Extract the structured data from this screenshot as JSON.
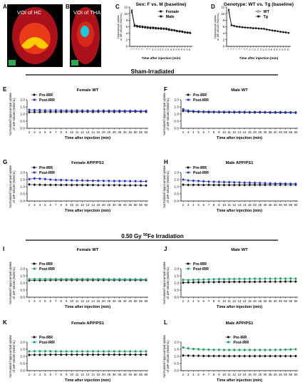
{
  "figure": {
    "sections": {
      "sham": "Sham-Irradiated",
      "fe_prefix": "0.50 Gy ",
      "fe_sup": "56",
      "fe_suffix": "Fe Irradiation"
    },
    "images": [
      {
        "letter": "A",
        "label": "VOI of HC"
      },
      {
        "letter": "B",
        "label": "VOI of THA"
      }
    ],
    "colors": {
      "black": "#111111",
      "blue": "#1f2fbf",
      "green": "#1a9a5e",
      "hc_yellow": "#ffcc00",
      "tha_cyan": "#1ec8d8",
      "brain_red": "#c8141e",
      "scan_green": "#2fa84f"
    }
  },
  "chart_data": [
    {
      "panel": "C",
      "type": "line",
      "title": "Sex: F vs. M (baseline)",
      "xlabel": "Time after injection (min)",
      "ylabel": "Hippocampal uptake of 18F-GE180 (%ID/mL)",
      "ylim": [
        0,
        12
      ],
      "yticks": [
        "12",
        "10",
        "8",
        "6",
        "4",
        "2",
        "0"
      ],
      "x": [
        2,
        3,
        4,
        5,
        6,
        7,
        8,
        9,
        10,
        11,
        12,
        13,
        14,
        15,
        20,
        25,
        30,
        35,
        40,
        45,
        50,
        55,
        60
      ],
      "legend": "top-right",
      "series": [
        {
          "name": "Female",
          "color_key": "black",
          "marker": "circle-filled",
          "values": [
            10.4,
            6.2,
            6.0,
            5.9,
            5.8,
            5.7,
            5.6,
            5.5,
            5.5,
            5.4,
            5.4,
            5.3,
            5.3,
            5.2,
            5.0,
            4.9,
            4.8,
            4.6,
            4.5,
            4.4,
            4.2,
            4.1,
            4.0
          ]
        },
        {
          "name": "Male",
          "color_key": "black",
          "marker": "square-filled",
          "values": [
            11.0,
            6.6,
            6.3,
            6.2,
            6.1,
            6.0,
            5.9,
            5.8,
            5.8,
            5.7,
            5.6,
            5.6,
            5.5,
            5.5,
            5.3,
            5.1,
            5.0,
            4.8,
            4.7,
            4.6,
            4.4,
            4.3,
            4.2
          ]
        }
      ]
    },
    {
      "panel": "D",
      "type": "line",
      "title": "Genotype: WT vs. Tg (baseline)",
      "xlabel": "Time after injection (min)",
      "ylabel": "Hippocampal uptake of 18F-GE180 (%ID/mL)",
      "ylim": [
        0,
        12
      ],
      "yticks": [
        "12",
        "10",
        "8",
        "6",
        "4",
        "2",
        "0"
      ],
      "x": [
        2,
        3,
        4,
        5,
        6,
        7,
        8,
        9,
        10,
        11,
        12,
        13,
        14,
        15,
        20,
        25,
        30,
        35,
        40,
        45,
        50,
        55,
        60
      ],
      "legend": "top-right",
      "series": [
        {
          "name": "WT",
          "color_key": "black",
          "marker": "circle-open",
          "values": [
            10.6,
            6.4,
            6.2,
            6.0,
            5.9,
            5.8,
            5.7,
            5.7,
            5.6,
            5.5,
            5.5,
            5.4,
            5.4,
            5.3,
            5.1,
            5.0,
            4.8,
            4.7,
            4.6,
            4.4,
            4.3,
            4.2,
            4.1
          ]
        },
        {
          "name": "Tg",
          "color_key": "black",
          "marker": "square-filled",
          "values": [
            11.2,
            6.5,
            6.3,
            6.1,
            6.0,
            5.9,
            5.8,
            5.7,
            5.7,
            5.6,
            5.6,
            5.5,
            5.4,
            5.4,
            5.2,
            5.0,
            4.9,
            4.8,
            4.6,
            4.5,
            4.4,
            4.3,
            4.1
          ]
        }
      ]
    },
    {
      "panel": "E",
      "type": "line",
      "title": "Female WT",
      "xlabel": "Time after injection (min)",
      "ylabel": "Normalized hippocampal uptake of 18F-GE180 (%ID/mL)",
      "ylim": [
        0,
        2.0
      ],
      "yticks": [
        "2.0",
        "1.5",
        "1.0",
        "0.5",
        "0.0"
      ],
      "x": [
        2,
        3,
        4,
        5,
        6,
        7,
        8,
        9,
        10,
        11,
        12,
        13,
        14,
        15,
        20,
        25,
        30,
        35,
        40,
        45,
        50,
        55,
        60
      ],
      "legend": "top-left",
      "series": [
        {
          "name": "Pre-IRR",
          "color_key": "black",
          "marker": "circle-filled",
          "values": [
            1.13,
            1.14,
            1.14,
            1.15,
            1.15,
            1.15,
            1.15,
            1.16,
            1.15,
            1.15,
            1.16,
            1.16,
            1.15,
            1.16,
            1.16,
            1.16,
            1.15,
            1.16,
            1.16,
            1.16,
            1.17,
            1.16,
            1.16
          ]
        },
        {
          "name": "Post-IRR",
          "color_key": "blue",
          "marker": "square-filled",
          "values": [
            1.29,
            1.28,
            1.28,
            1.26,
            1.26,
            1.26,
            1.25,
            1.25,
            1.24,
            1.25,
            1.24,
            1.24,
            1.23,
            1.24,
            1.24,
            1.23,
            1.23,
            1.23,
            1.22,
            1.22,
            1.22,
            1.21,
            1.22
          ]
        }
      ]
    },
    {
      "panel": "F",
      "type": "line",
      "title": "Male WT",
      "xlabel": "Time after injection (min)",
      "ylabel": "Normalized hippocampal uptake of 18F-GE180 (%ID/mL)",
      "ylim": [
        0,
        2.0
      ],
      "yticks": [
        "2.0",
        "1.5",
        "1.0",
        "0.5",
        "0.0"
      ],
      "x": [
        2,
        3,
        4,
        5,
        6,
        7,
        8,
        9,
        10,
        11,
        12,
        13,
        14,
        15,
        20,
        25,
        30,
        35,
        40,
        45,
        50,
        55,
        60
      ],
      "legend": "top-left",
      "series": [
        {
          "name": "Pre-IRR",
          "color_key": "black",
          "marker": "circle-filled",
          "values": [
            1.22,
            1.18,
            1.16,
            1.15,
            1.14,
            1.13,
            1.13,
            1.13,
            1.12,
            1.12,
            1.12,
            1.12,
            1.11,
            1.11,
            1.11,
            1.11,
            1.11,
            1.1,
            1.1,
            1.1,
            1.1,
            1.1,
            1.09
          ]
        },
        {
          "name": "Post-IRR",
          "color_key": "blue",
          "marker": "square-filled",
          "values": [
            1.33,
            1.24,
            1.2,
            1.18,
            1.17,
            1.17,
            1.16,
            1.16,
            1.16,
            1.15,
            1.15,
            1.15,
            1.15,
            1.14,
            1.14,
            1.14,
            1.14,
            1.13,
            1.13,
            1.13,
            1.13,
            1.12,
            1.12
          ]
        }
      ]
    },
    {
      "panel": "G",
      "type": "line",
      "title": "Female APP/PS1",
      "xlabel": "Time after injection (min)",
      "ylabel": "Normalized hippocampal uptake of 18F-GE180 (%ID/mL)",
      "ylim": [
        0,
        2.0
      ],
      "yticks": [
        "2.0",
        "1.5",
        "1.0",
        "0.5",
        "0.0"
      ],
      "x": [
        2,
        3,
        4,
        5,
        6,
        7,
        8,
        9,
        10,
        11,
        12,
        13,
        14,
        15,
        20,
        25,
        30,
        35,
        40,
        45,
        50,
        55,
        60
      ],
      "legend": "top-left",
      "series": [
        {
          "name": "Pre-IRR",
          "color_key": "black",
          "marker": "circle-filled",
          "values": [
            1.16,
            1.14,
            1.14,
            1.13,
            1.13,
            1.13,
            1.13,
            1.13,
            1.12,
            1.12,
            1.12,
            1.12,
            1.12,
            1.11,
            1.11,
            1.11,
            1.11,
            1.11,
            1.1,
            1.1,
            1.1,
            1.1,
            1.09
          ]
        },
        {
          "name": "Post-IRR",
          "color_key": "blue",
          "marker": "square-filled",
          "values": [
            1.53,
            1.58,
            1.56,
            1.54,
            1.5,
            1.48,
            1.47,
            1.46,
            1.45,
            1.44,
            1.44,
            1.43,
            1.42,
            1.42,
            1.41,
            1.41,
            1.4,
            1.4,
            1.4,
            1.39,
            1.39,
            1.38,
            1.38
          ]
        }
      ]
    },
    {
      "panel": "H",
      "type": "line",
      "title": "Male APP/PS1",
      "xlabel": "Time after injection (min)",
      "ylabel": "Normalized hippocampal uptake of 18F-GE180 (%ID/mL)",
      "ylim": [
        0,
        2.0
      ],
      "yticks": [
        "2.0",
        "1.5",
        "1.0",
        "0.5",
        "0.0"
      ],
      "x": [
        2,
        3,
        4,
        5,
        6,
        7,
        8,
        9,
        10,
        11,
        12,
        13,
        14,
        15,
        20,
        25,
        30,
        35,
        40,
        45,
        50,
        55,
        60
      ],
      "legend": "top-left",
      "series": [
        {
          "name": "Pre-IRR",
          "color_key": "black",
          "marker": "circle-filled",
          "values": [
            1.14,
            1.13,
            1.13,
            1.13,
            1.12,
            1.13,
            1.12,
            1.12,
            1.12,
            1.12,
            1.12,
            1.12,
            1.12,
            1.13,
            1.13,
            1.13,
            1.13,
            1.14,
            1.14,
            1.14,
            1.14,
            1.14,
            1.14
          ]
        },
        {
          "name": "Post-IRR",
          "color_key": "blue",
          "marker": "square-filled",
          "values": [
            1.5,
            1.44,
            1.42,
            1.4,
            1.38,
            1.36,
            1.35,
            1.34,
            1.33,
            1.32,
            1.31,
            1.3,
            1.29,
            1.28,
            1.27,
            1.26,
            1.25,
            1.24,
            1.23,
            1.22,
            1.22,
            1.21,
            1.21
          ]
        }
      ]
    },
    {
      "panel": "I",
      "type": "line",
      "title": "Female WT",
      "xlabel": "Time after injection (min)",
      "ylabel": "Normalized hippocampal uptake of 18F-GE180 (%ID/mL)",
      "ylim": [
        0,
        2.0
      ],
      "yticks": [
        "2.0",
        "1.5",
        "1.0",
        "0.5",
        "0.0"
      ],
      "x": [
        2,
        3,
        4,
        5,
        6,
        7,
        8,
        9,
        10,
        11,
        12,
        13,
        14,
        15,
        20,
        25,
        30,
        35,
        40,
        45,
        50,
        55,
        60
      ],
      "legend": "top-left",
      "series": [
        {
          "name": "Pre-IRR",
          "color_key": "black",
          "marker": "circle-filled",
          "values": [
            1.18,
            1.19,
            1.19,
            1.19,
            1.2,
            1.2,
            1.2,
            1.2,
            1.2,
            1.2,
            1.2,
            1.2,
            1.2,
            1.2,
            1.2,
            1.2,
            1.2,
            1.2,
            1.2,
            1.2,
            1.2,
            1.2,
            1.2
          ]
        },
        {
          "name": "Post-IRR",
          "color_key": "green",
          "marker": "square-filled",
          "values": [
            1.26,
            1.27,
            1.27,
            1.27,
            1.27,
            1.27,
            1.27,
            1.27,
            1.27,
            1.27,
            1.27,
            1.27,
            1.27,
            1.27,
            1.27,
            1.26,
            1.26,
            1.26,
            1.26,
            1.26,
            1.26,
            1.25,
            1.25
          ]
        }
      ]
    },
    {
      "panel": "J",
      "type": "line",
      "title": "Male WT",
      "xlabel": "Time after injection (min)",
      "ylabel": "Normalized hippocampal uptake of 18F-GE180 (%ID/mL)",
      "ylim": [
        0,
        2.0
      ],
      "yticks": [
        "2.0",
        "1.5",
        "1.0",
        "0.5",
        "0.0"
      ],
      "x": [
        2,
        3,
        4,
        5,
        6,
        7,
        8,
        9,
        10,
        11,
        12,
        13,
        14,
        15,
        20,
        25,
        30,
        35,
        40,
        45,
        50,
        55,
        60
      ],
      "legend": "top-left",
      "series": [
        {
          "name": "Pre-IRR",
          "color_key": "black",
          "marker": "circle-filled",
          "values": [
            1.02,
            1.04,
            1.04,
            1.05,
            1.05,
            1.06,
            1.06,
            1.07,
            1.07,
            1.07,
            1.08,
            1.08,
            1.08,
            1.08,
            1.08,
            1.09,
            1.09,
            1.09,
            1.09,
            1.09,
            1.1,
            1.1,
            1.1
          ]
        },
        {
          "name": "Post-IRR",
          "color_key": "green",
          "marker": "square-filled",
          "values": [
            1.22,
            1.2,
            1.22,
            1.23,
            1.24,
            1.25,
            1.26,
            1.27,
            1.27,
            1.28,
            1.28,
            1.29,
            1.28,
            1.29,
            1.3,
            1.29,
            1.3,
            1.3,
            1.3,
            1.31,
            1.3,
            1.31,
            1.3
          ]
        }
      ]
    },
    {
      "panel": "K",
      "type": "line",
      "title": "Female APP/PS1",
      "xlabel": "Time after injection (min)",
      "ylabel": "Normalized hippocampal uptake of 18F-GE180 (%ID/mL)",
      "ylim": [
        0,
        2.0
      ],
      "yticks": [
        "2.0",
        "1.5",
        "1.0",
        "0.5",
        "0.0"
      ],
      "x": [
        2,
        3,
        4,
        5,
        6,
        7,
        8,
        9,
        10,
        11,
        12,
        13,
        14,
        15,
        20,
        25,
        30,
        35,
        40,
        45,
        50,
        55,
        60
      ],
      "legend": "top-left",
      "series": [
        {
          "name": "Pre-IRR",
          "color_key": "black",
          "marker": "circle-filled",
          "values": [
            1.1,
            1.11,
            1.11,
            1.11,
            1.12,
            1.12,
            1.12,
            1.12,
            1.12,
            1.12,
            1.12,
            1.12,
            1.12,
            1.12,
            1.12,
            1.12,
            1.12,
            1.12,
            1.12,
            1.12,
            1.12,
            1.12,
            1.12
          ]
        },
        {
          "name": "Post-IRR",
          "color_key": "green",
          "marker": "square-filled",
          "values": [
            1.35,
            1.36,
            1.36,
            1.36,
            1.36,
            1.35,
            1.35,
            1.35,
            1.35,
            1.35,
            1.35,
            1.35,
            1.35,
            1.35,
            1.35,
            1.35,
            1.35,
            1.35,
            1.35,
            1.35,
            1.35,
            1.35,
            1.35
          ]
        }
      ]
    },
    {
      "panel": "L",
      "type": "line",
      "title": "Male APP/PS1",
      "xlabel": "Time after injection (min)",
      "ylabel": "Normalized hippocampal uptake of 18F-GE180 (%ID/mL)",
      "ylim": [
        0,
        2.0
      ],
      "yticks": [
        "2.0",
        "1.5",
        "1.0",
        "0.5",
        "0.0"
      ],
      "x": [
        2,
        3,
        4,
        5,
        6,
        7,
        8,
        9,
        10,
        11,
        12,
        13,
        14,
        15,
        20,
        25,
        30,
        35,
        40,
        45,
        50,
        55,
        60
      ],
      "legend": "top-right",
      "series": [
        {
          "name": "Pre-IRR",
          "color_key": "black",
          "marker": "circle-filled",
          "values": [
            1.06,
            1.05,
            1.04,
            1.04,
            1.03,
            1.03,
            1.03,
            1.03,
            1.02,
            1.02,
            1.02,
            1.02,
            1.02,
            1.02,
            1.02,
            1.02,
            1.02,
            1.02,
            1.02,
            1.02,
            1.02,
            1.02,
            1.02
          ]
        },
        {
          "name": "Post-IRR",
          "color_key": "green",
          "marker": "square-filled",
          "values": [
            1.62,
            1.56,
            1.52,
            1.5,
            1.48,
            1.47,
            1.46,
            1.46,
            1.45,
            1.45,
            1.45,
            1.45,
            1.45,
            1.45,
            1.45,
            1.45,
            1.45,
            1.45,
            1.46,
            1.46,
            1.47,
            1.48,
            1.5
          ]
        }
      ]
    }
  ]
}
